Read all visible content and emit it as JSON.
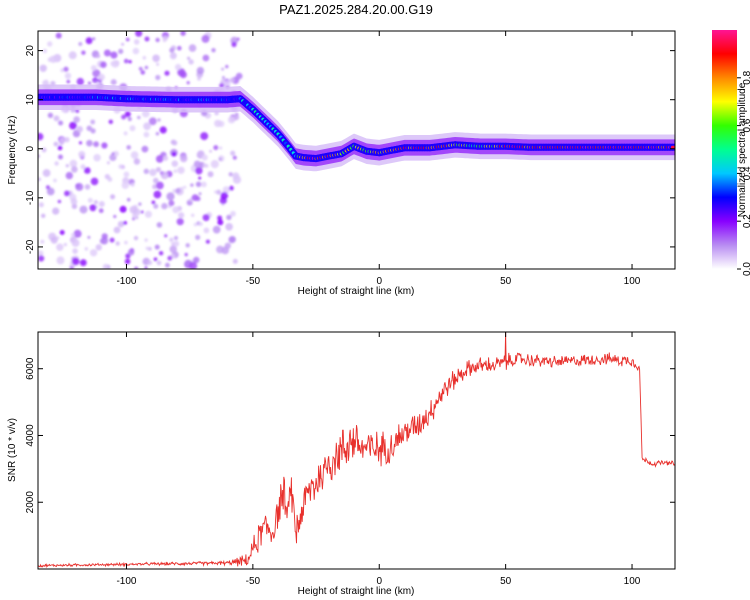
{
  "title": "PAZ1.2025.284.20.00.G19",
  "chart_data": [
    {
      "type": "heatmap",
      "name": "spectrogram",
      "xlabel": "Height of straight line (km)",
      "ylabel": "Frequency (Hz)",
      "xlim": [
        -135,
        117
      ],
      "ylim": [
        -24.5,
        24
      ],
      "xticks": [
        -100,
        -50,
        0,
        50,
        100
      ],
      "xtick_labels": [
        "-100",
        "-50",
        "0",
        "50",
        "100"
      ],
      "yticks": [
        -20,
        -10,
        0,
        10,
        20
      ],
      "ytick_labels": [
        "-20",
        "-10",
        "0",
        "10",
        "20"
      ],
      "ridge": {
        "x": [
          -135,
          -112,
          -100,
          -80,
          -60,
          -55,
          -50,
          -45,
          -40,
          -36,
          -33,
          -30,
          -25,
          -20,
          -15,
          -10,
          -5,
          0,
          10,
          20,
          30,
          40,
          50,
          60,
          80,
          100,
          117
        ],
        "freq": [
          10.5,
          10.5,
          10.2,
          10.0,
          10.0,
          10.2,
          8.0,
          5.5,
          3.0,
          0.5,
          -1.5,
          -1.8,
          -2.0,
          -1.5,
          -1.0,
          0.5,
          -0.5,
          -0.8,
          0.2,
          0.2,
          0.8,
          0.5,
          0.5,
          0.3,
          0.3,
          0.3,
          0.3
        ],
        "peak_amp": [
          0.15,
          0.3,
          0.35,
          0.3,
          0.3,
          0.35,
          0.4,
          0.45,
          0.5,
          0.45,
          0.45,
          0.8,
          0.9,
          0.85,
          0.6,
          0.7,
          0.6,
          0.7,
          0.85,
          0.9,
          0.7,
          0.5,
          0.85,
          0.9,
          0.95,
          0.95,
          0.9
        ]
      },
      "noise_region_x": [
        -135,
        -55
      ],
      "colorbar": {
        "label": "Normalized spectral amplitude",
        "range": [
          0.0,
          1.0
        ],
        "ticks": [
          0.0,
          0.2,
          0.4,
          0.6,
          0.8
        ],
        "tick_labels": [
          "0.0",
          "0.2",
          "0.4",
          "0.6",
          "0.8"
        ],
        "colormap": [
          "#ffffff",
          "#b88cf2",
          "#8800ff",
          "#0000ff",
          "#00c8ff",
          "#00ff90",
          "#33ff00",
          "#ffff00",
          "#ff8800",
          "#ff0000",
          "#ff1493"
        ]
      }
    },
    {
      "type": "line",
      "name": "snr",
      "xlabel": "Height of straight line (km)",
      "ylabel": "SNR (10 * v/v)",
      "xlim": [
        -135,
        117
      ],
      "ylim": [
        0,
        7100
      ],
      "xticks": [
        -100,
        -50,
        0,
        50,
        100
      ],
      "xtick_labels": [
        "-100",
        "-50",
        "0",
        "50",
        "100"
      ],
      "yticks": [
        2000,
        4000,
        6000
      ],
      "ytick_labels": [
        "2000",
        "4000",
        "6000"
      ],
      "color": "#e8302c",
      "x": [
        -135,
        -120,
        -100,
        -80,
        -60,
        -52,
        -50,
        -48,
        -45,
        -42,
        -40,
        -38,
        -36,
        -35,
        -34,
        -33,
        -30,
        -28,
        -25,
        -22,
        -20,
        -15,
        -12,
        -10,
        -8,
        -5,
        0,
        5,
        10,
        15,
        20,
        25,
        30,
        35,
        40,
        45,
        50,
        55,
        60,
        70,
        80,
        90,
        95,
        100,
        102,
        103,
        104,
        108,
        112,
        117
      ],
      "y": [
        100,
        120,
        140,
        160,
        180,
        250,
        600,
        900,
        1300,
        1100,
        1800,
        2300,
        1400,
        2700,
        1800,
        1100,
        1900,
        2300,
        2600,
        2900,
        3200,
        3500,
        3800,
        3900,
        3700,
        3600,
        3600,
        3700,
        4100,
        4300,
        4700,
        5300,
        5700,
        6000,
        6100,
        6100,
        6200,
        6300,
        6250,
        6200,
        6250,
        6300,
        6250,
        6250,
        6100,
        6000,
        3300,
        3150,
        3180,
        3150
      ],
      "noise_amp": [
        40,
        40,
        40,
        50,
        60,
        200,
        300,
        450,
        500,
        500,
        550,
        600,
        600,
        700,
        650,
        550,
        550,
        600,
        650,
        650,
        700,
        700,
        700,
        700,
        700,
        650,
        500,
        500,
        450,
        400,
        400,
        350,
        300,
        250,
        250,
        250,
        250,
        200,
        200,
        180,
        180,
        180,
        180,
        180,
        150,
        100,
        80,
        80,
        80,
        80
      ]
    }
  ]
}
